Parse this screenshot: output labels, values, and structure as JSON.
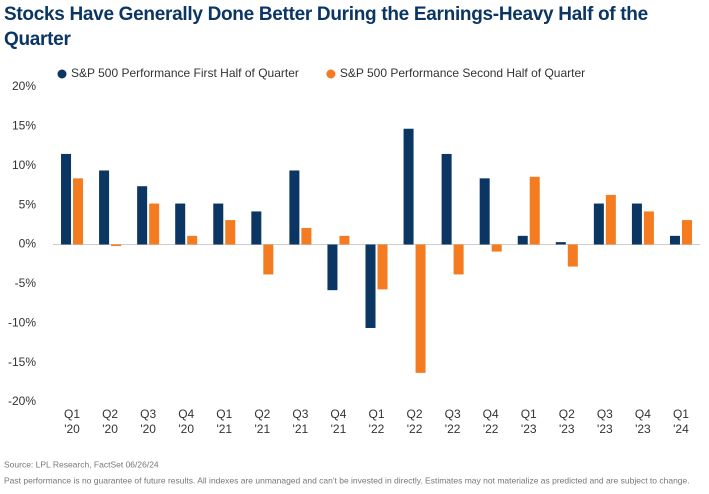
{
  "chart_data": {
    "type": "bar",
    "title": "Stocks Have Generally Done Better During the Earnings-Heavy Half of the Quarter",
    "categories": [
      [
        "Q1",
        "'20"
      ],
      [
        "Q2",
        "'20"
      ],
      [
        "Q3",
        "'20"
      ],
      [
        "Q4",
        "'20"
      ],
      [
        "Q1",
        "'21"
      ],
      [
        "Q2",
        "'21"
      ],
      [
        "Q3",
        "'21"
      ],
      [
        "Q4",
        "'21"
      ],
      [
        "Q1",
        "'22"
      ],
      [
        "Q2",
        "'22"
      ],
      [
        "Q3",
        "'22"
      ],
      [
        "Q4",
        "'22"
      ],
      [
        "Q1",
        "'23"
      ],
      [
        "Q2",
        "'23"
      ],
      [
        "Q3",
        "'23"
      ],
      [
        "Q4",
        "'23"
      ],
      [
        "Q1",
        "'24"
      ]
    ],
    "series": [
      {
        "name": "S&P 500 Performance First Half of Quarter",
        "color": "#0b3563",
        "values": [
          11.5,
          9.4,
          7.4,
          5.2,
          5.2,
          4.2,
          9.4,
          -5.8,
          -10.6,
          14.7,
          11.5,
          8.4,
          1.1,
          0.3,
          5.2,
          5.2,
          1.1
        ]
      },
      {
        "name": "S&P 500 Performance Second Half of Quarter",
        "color": "#f47b20",
        "values": [
          8.4,
          -0.2,
          5.2,
          1.1,
          3.1,
          -3.8,
          2.1,
          1.1,
          -5.7,
          -16.3,
          -3.8,
          -0.9,
          8.6,
          -2.8,
          6.3,
          4.2,
          3.1
        ]
      }
    ],
    "ylim": [
      -20,
      20
    ],
    "yticks": [
      {
        "value": -20,
        "label": "-20%"
      },
      {
        "value": -15,
        "label": "-15%"
      },
      {
        "value": -10,
        "label": "-10%"
      },
      {
        "value": -5,
        "label": "-5%"
      },
      {
        "value": 0,
        "label": "0%"
      },
      {
        "value": 5,
        "label": "5%"
      },
      {
        "value": 10,
        "label": "10%"
      },
      {
        "value": 15,
        "label": "15%"
      },
      {
        "value": 20,
        "label": "20%"
      }
    ],
    "grid": false,
    "source": "Source: LPL Research, FactSet 06/26/24",
    "note": "Past performance is no guarantee of future results. All indexes are unmanaged and can't be invested in directly. Estimates may not materialize as predicted and are subject to change."
  }
}
